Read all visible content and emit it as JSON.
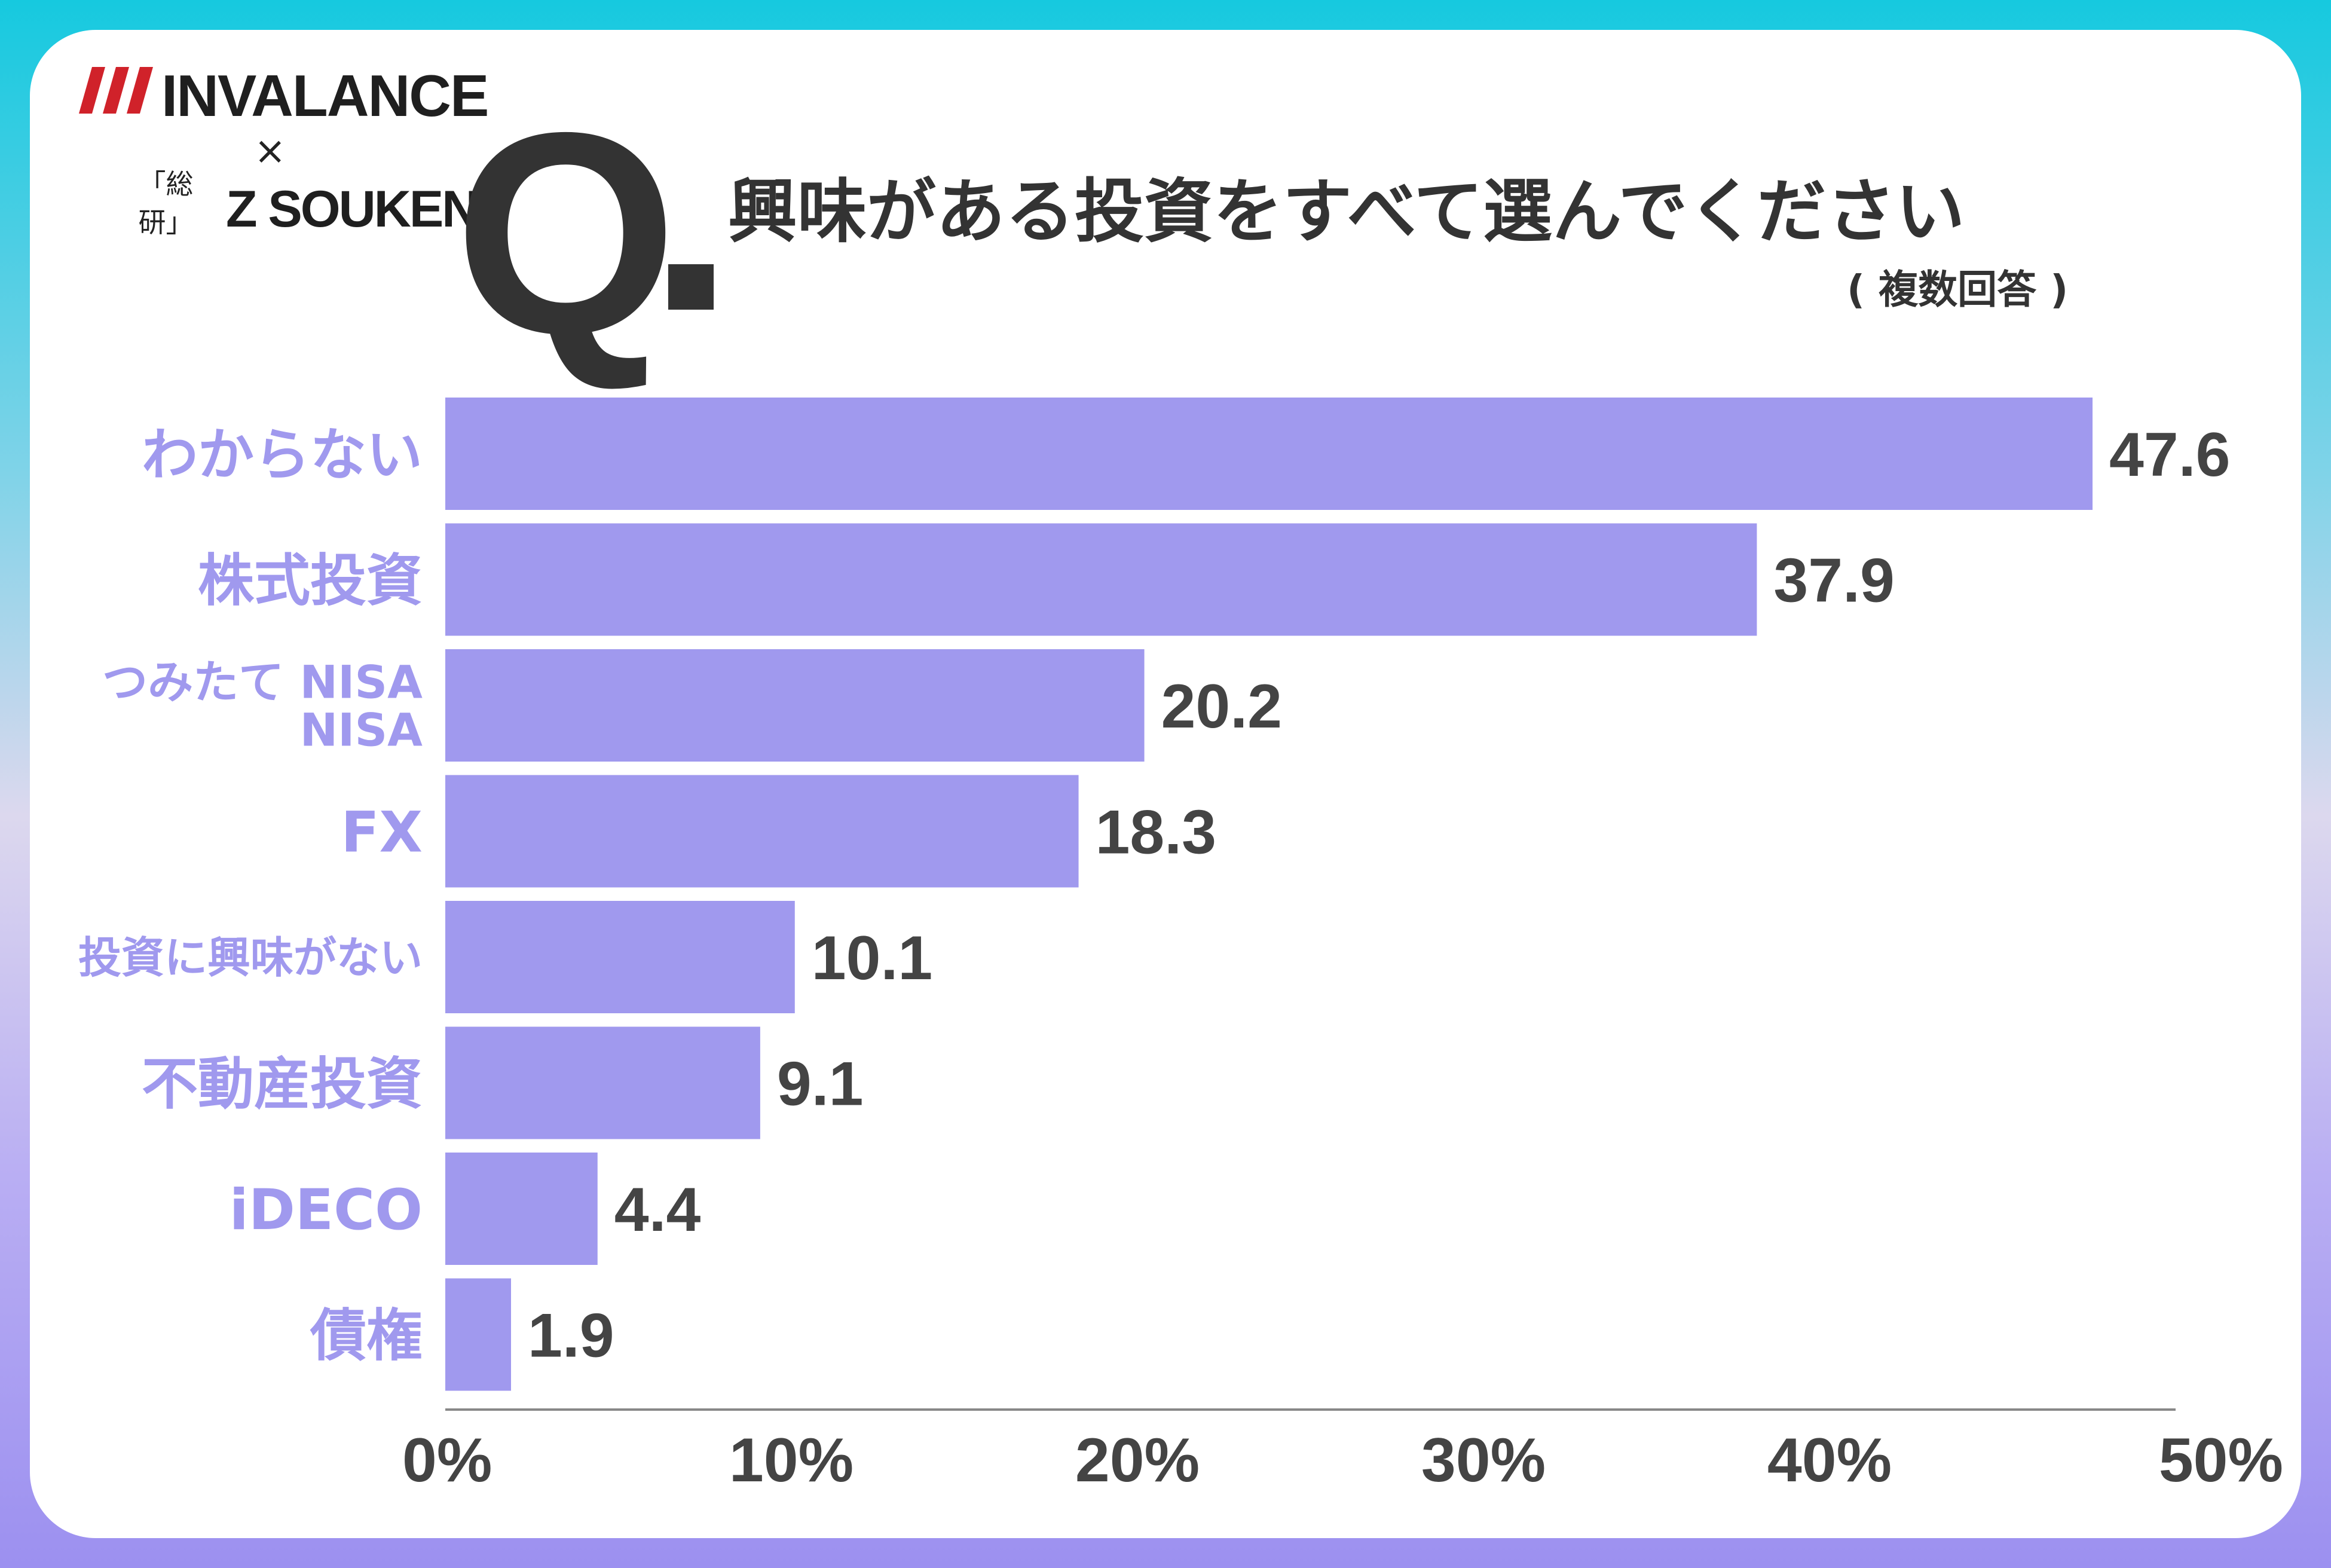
{
  "logos": {
    "brand1": "INVALANCE",
    "times": "×",
    "brand2_mark_top": "「総",
    "brand2_mark_bottom": "研」",
    "brand2": "Z SOUKEN"
  },
  "question": {
    "mark": "Q",
    "text": "興味がある投資をすべて選んでください",
    "note": "( 複数回答 )"
  },
  "colors": {
    "bar": "#a099ee",
    "label": "#a099ee",
    "value_text": "#444444",
    "axis": "#888888"
  },
  "chart_data": {
    "type": "bar",
    "orientation": "horizontal",
    "categories": [
      [
        "わからない"
      ],
      [
        "株式投資"
      ],
      [
        "つみたて NISA",
        "NISA"
      ],
      [
        "FX"
      ],
      [
        "投資に興味がない"
      ],
      [
        "不動産投資"
      ],
      [
        "iDECO"
      ],
      [
        "債権"
      ]
    ],
    "values": [
      47.6,
      37.9,
      20.2,
      18.3,
      10.1,
      9.1,
      4.4,
      1.9
    ],
    "value_labels": [
      "47.6",
      "37.9",
      "20.2",
      "18.3",
      "10.1",
      "9.1",
      "4.4",
      "1.9"
    ],
    "xlim": [
      0,
      50
    ],
    "x_ticks": [
      "0%",
      "10%",
      "20%",
      "30%",
      "40%",
      "50%"
    ],
    "grid": false,
    "legend": "none"
  }
}
